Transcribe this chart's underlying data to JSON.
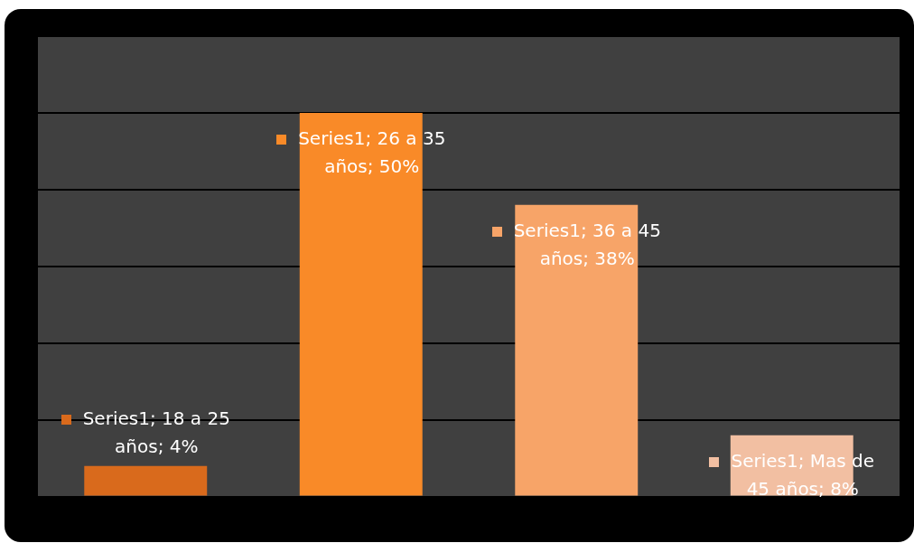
{
  "chart_data": {
    "type": "bar",
    "categories": [
      null,
      null,
      null,
      null
    ],
    "series": [
      {
        "values": [
          4,
          50,
          38,
          8
        ],
        "colors": [
          "#d96a1c",
          "#f98a28",
          "#f7a468",
          "#f2bfa2"
        ],
        "value_labels": [
          "Series1; 18 a 25 años; 4%",
          "Series1; 26 a 35 años; 50%",
          "Series1; 36 a 45 años; 38%",
          "Series1; Mas de 45 años; 8%"
        ]
      }
    ],
    "ylim": [
      0,
      60
    ],
    "yticks": [
      {
        "value": 0,
        "label": null
      },
      {
        "value": 10,
        "label": null
      },
      {
        "value": 20,
        "label": null
      },
      {
        "value": 30,
        "label": null
      },
      {
        "value": 40,
        "label": null
      },
      {
        "value": 50,
        "label": null
      },
      {
        "value": 60,
        "label": null
      }
    ],
    "grid": "y",
    "legend": false
  }
}
